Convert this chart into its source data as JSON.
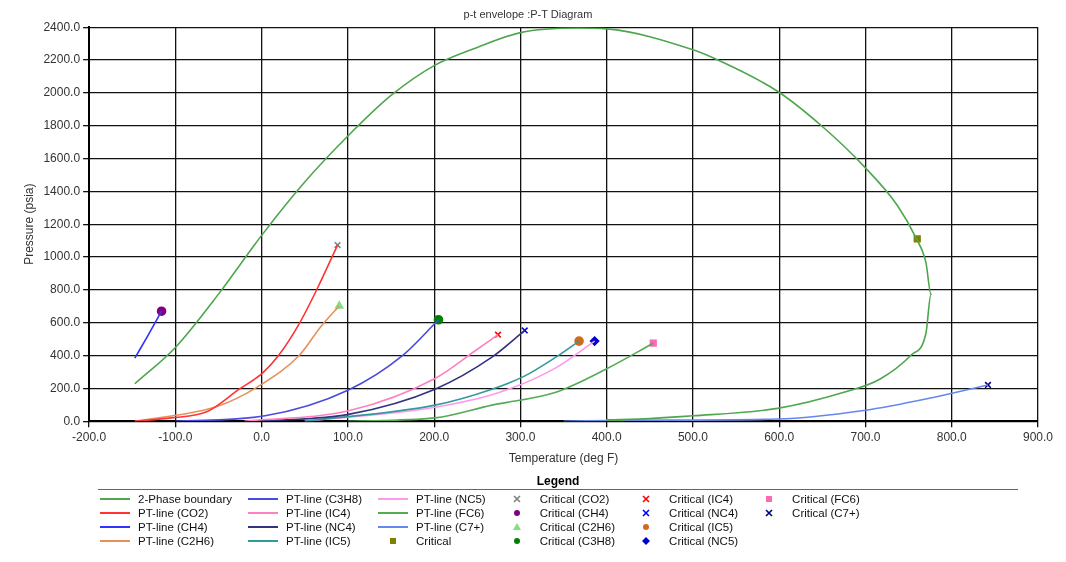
{
  "chart_data": {
    "type": "line",
    "title": "p-t envelope :P-T Diagram",
    "xlabel": "Temperature (deg F)",
    "ylabel": "Pressure (psia)",
    "legend_title": "Legend",
    "legend": "bottom",
    "grid": true,
    "marker": "none",
    "xlim": [
      -200,
      900
    ],
    "xticks": [
      {
        "value": -200,
        "label": "-200.0"
      },
      {
        "value": -100,
        "label": "-100.0"
      },
      {
        "value": 0,
        "label": "0.0"
      },
      {
        "value": 100,
        "label": "100.0"
      },
      {
        "value": 200,
        "label": "200.0"
      },
      {
        "value": 300,
        "label": "300.0"
      },
      {
        "value": 400,
        "label": "400.0"
      },
      {
        "value": 500,
        "label": "500.0"
      },
      {
        "value": 600,
        "label": "600.0"
      },
      {
        "value": 700,
        "label": "700.0"
      },
      {
        "value": 800,
        "label": "800.0"
      },
      {
        "value": 900,
        "label": "900.0"
      }
    ],
    "ylim": [
      0,
      2400
    ],
    "yticks": [
      {
        "value": 0,
        "label": "0.0"
      },
      {
        "value": 200,
        "label": "200.0"
      },
      {
        "value": 400,
        "label": "400.0"
      },
      {
        "value": 600,
        "label": "600.0"
      },
      {
        "value": 800,
        "label": "800.0"
      },
      {
        "value": 1000,
        "label": "1000.0"
      },
      {
        "value": 1200,
        "label": "1200.0"
      },
      {
        "value": 1400,
        "label": "1400.0"
      },
      {
        "value": 1600,
        "label": "1600.0"
      },
      {
        "value": 1800,
        "label": "1800.0"
      },
      {
        "value": 2000,
        "label": "2000.0"
      },
      {
        "value": 2200,
        "label": "2200.0"
      },
      {
        "value": 2400,
        "label": "2400.0"
      }
    ],
    "series": [
      {
        "name": "2-Phase boundary",
        "color": "#4ea64e",
        "type": "line",
        "x": [
          -147,
          -100,
          -50,
          0,
          50,
          100,
          150,
          200,
          250,
          300,
          366,
          400,
          500,
          527,
          598,
          650,
          698,
          737,
          759,
          770,
          776,
          770,
          753,
          716,
          675,
          598,
          500,
          400,
          420
        ],
        "values": [
          228,
          449,
          774,
          1132,
          1457,
          1737,
          1984,
          2166,
          2277,
          2367,
          2395,
          2390,
          2263,
          2205,
          2010,
          1795,
          1554,
          1314,
          1112,
          969,
          774,
          533,
          403,
          254,
          176,
          78,
          33,
          8,
          2
        ]
      },
      {
        "name": "PT-line (CO2)",
        "color": "#ff3333",
        "type": "line",
        "x": [
          -147,
          -105,
          -63,
          -26,
          1,
          20,
          44,
          65,
          88
        ],
        "values": [
          0,
          20,
          59,
          195,
          293,
          403,
          598,
          813,
          1073
        ]
      },
      {
        "name": "PT-line (CH4)",
        "color": "#3333ff",
        "type": "line",
        "x": [
          -147,
          -132,
          -116
        ],
        "values": [
          384,
          520,
          670
        ]
      },
      {
        "name": "PT-line (C2H6)",
        "color": "#e8905a",
        "type": "line",
        "x": [
          -147,
          -51,
          -1,
          44,
          69,
          90
        ],
        "values": [
          0,
          91,
          221,
          403,
          579,
          702
        ]
      },
      {
        "name": "PT-line (C3H8)",
        "color": "#4a4ae0",
        "type": "line",
        "x": [
          -100,
          4,
          100,
          164,
          205
        ],
        "values": [
          0,
          33,
          189,
          403,
          618
        ]
      },
      {
        "name": "PT-line (IC4)",
        "color": "#ff80c0",
        "type": "line",
        "x": [
          -20,
          102,
          201,
          246,
          274
        ],
        "values": [
          0,
          65,
          260,
          423,
          527
        ]
      },
      {
        "name": "PT-line (NC4)",
        "color": "#333380",
        "type": "line",
        "x": [
          0,
          102,
          201,
          267,
          305
        ],
        "values": [
          0,
          43,
          195,
          390,
          553
        ]
      },
      {
        "name": "PT-line (IC5)",
        "color": "#339999",
        "type": "line",
        "x": [
          50,
          201,
          267,
          304,
          341,
          368
        ],
        "values": [
          0,
          98,
          195,
          273,
          390,
          488
        ]
      },
      {
        "name": "PT-line (NC5)",
        "color": "#ff99ee",
        "type": "line",
        "x": [
          50,
          201,
          276,
          341,
          386
        ],
        "values": [
          0,
          85,
          176,
          325,
          488
        ]
      },
      {
        "name": "PT-line (FC6)",
        "color": "#55aa55",
        "type": "line",
        "x": [
          100,
          201,
          267,
          341,
          400,
          454
        ],
        "values": [
          0,
          20,
          98,
          176,
          319,
          475
        ]
      },
      {
        "name": "PT-line (C7+)",
        "color": "#6688ee",
        "type": "line",
        "x": [
          350,
          431,
          598,
          698,
          777,
          842
        ],
        "values": [
          0,
          6,
          13,
          65,
          143,
          221
        ]
      },
      {
        "name": "Critical",
        "color": "#808000",
        "type": "scatter",
        "marker": "square",
        "x": [
          760
        ],
        "values": [
          1110
        ]
      },
      {
        "name": "Critical (CO2)",
        "color": "#808080",
        "type": "scatter",
        "marker": "cross",
        "x": [
          88
        ],
        "values": [
          1073
        ]
      },
      {
        "name": "Critical (CH4)",
        "color": "#800080",
        "type": "scatter",
        "marker": "circle",
        "x": [
          -116
        ],
        "values": [
          670
        ]
      },
      {
        "name": "Critical (C2H6)",
        "color": "#80e080",
        "type": "scatter",
        "marker": "triangle",
        "x": [
          90
        ],
        "values": [
          702
        ]
      },
      {
        "name": "Critical (C3H8)",
        "color": "#008000",
        "type": "scatter",
        "marker": "circle",
        "x": [
          205
        ],
        "values": [
          618
        ]
      },
      {
        "name": "Critical (IC4)",
        "color": "#ff0000",
        "type": "scatter",
        "marker": "cross",
        "x": [
          274
        ],
        "values": [
          527
        ]
      },
      {
        "name": "Critical (NC4)",
        "color": "#0000ff",
        "type": "scatter",
        "marker": "cross",
        "x": [
          305
        ],
        "values": [
          553
        ]
      },
      {
        "name": "Critical (IC5)",
        "color": "#d2691e",
        "type": "scatter",
        "marker": "circle",
        "x": [
          368
        ],
        "values": [
          488
        ]
      },
      {
        "name": "Critical (NC5)",
        "color": "#0000cc",
        "type": "scatter",
        "marker": "diamond",
        "x": [
          386
        ],
        "values": [
          488
        ]
      },
      {
        "name": "Critical (FC6)",
        "color": "#ff69b4",
        "type": "scatter",
        "marker": "square",
        "x": [
          454
        ],
        "values": [
          475
        ]
      },
      {
        "name": "Critical (C7+)",
        "color": "#000080",
        "type": "scatter",
        "marker": "cross",
        "x": [
          842
        ],
        "values": [
          221
        ]
      }
    ]
  }
}
